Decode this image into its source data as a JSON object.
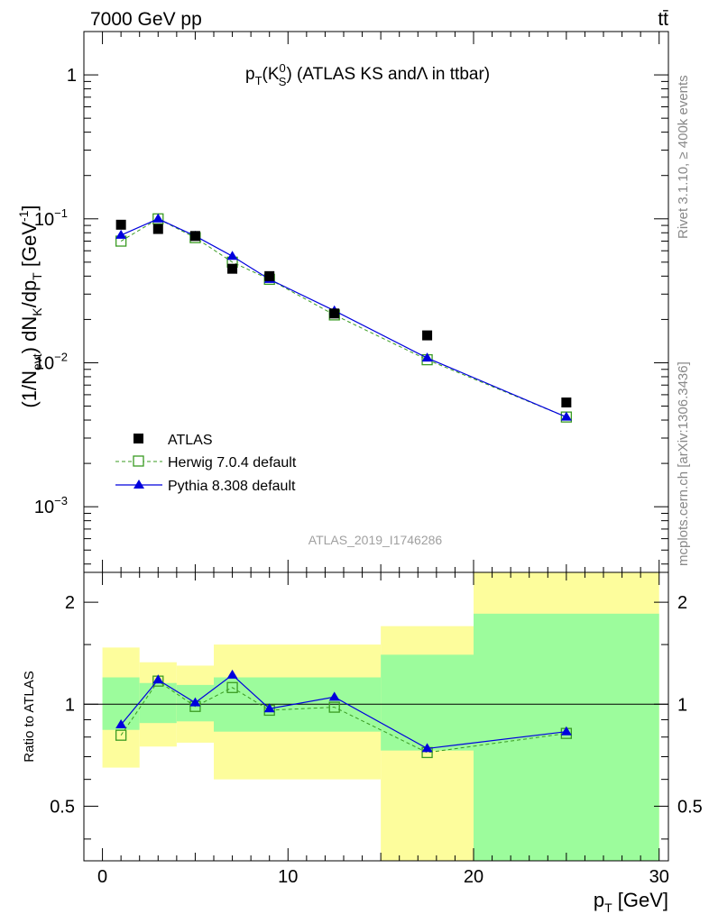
{
  "header": {
    "left": "7000 GeV pp",
    "right": "tt̄",
    "side_top": "Rivet 3.1.10, ≥ 400k events",
    "side_bottom": "mcplots.cern.ch [arXiv:1306.3436]"
  },
  "colors": {
    "atlas": "#000000",
    "herwig": "#3a9b22",
    "pythia": "#0000dd",
    "band_inner": "#9cfc9c",
    "band_outer": "#fdfd9c",
    "analysis_id": "#a0a0a0"
  },
  "chart_data": [
    {
      "type": "scatter",
      "panel": "main",
      "title_parts": {
        "p": "p",
        "T": "T",
        "lp": "(K",
        "sup": "0",
        "sub": "S",
        "rp": ")",
        "rest": " (ATLAS KS and",
        "lambda": "Λ",
        "tail": " in ttbar)"
      },
      "ylabel_parts": {
        "a": "(1/N",
        "b": "evt",
        "c": ") dN",
        "d": "K",
        "e": "/dp",
        "f": "T",
        "g": " [GeV",
        "h": "-1",
        "i": "]"
      },
      "analysis_id": "ATLAS_2019_I1746286",
      "y_scale": "log",
      "ylim": [
        0.00035,
        2
      ],
      "xlim": [
        -1,
        30.5
      ],
      "y_ticks": [
        {
          "base": "1",
          "exp": ""
        },
        {
          "base": "10",
          "exp": "−1"
        },
        {
          "base": "10",
          "exp": "−2"
        },
        {
          "base": "10",
          "exp": "−3"
        }
      ],
      "legend_position": "bottom-left",
      "series": [
        {
          "name": "ATLAS",
          "marker": "square-filled",
          "x": [
            1,
            3,
            5,
            7,
            9,
            12.5,
            17.5,
            25
          ],
          "y": [
            0.091,
            0.085,
            0.076,
            0.045,
            0.04,
            0.022,
            0.0155,
            0.0053
          ]
        },
        {
          "name": "Herwig 7.0.4 default",
          "marker": "square-open",
          "line": "dashed",
          "x": [
            1,
            3,
            5,
            7,
            9,
            12.5,
            17.5,
            25
          ],
          "y": [
            0.07,
            0.1,
            0.074,
            0.05,
            0.038,
            0.0215,
            0.0105,
            0.0042
          ]
        },
        {
          "name": "Pythia 8.308 default",
          "marker": "triangle-filled",
          "line": "solid",
          "x": [
            1,
            3,
            5,
            7,
            9,
            12.5,
            17.5,
            25
          ],
          "y": [
            0.077,
            0.1,
            0.076,
            0.055,
            0.038,
            0.023,
            0.0108,
            0.0042
          ]
        }
      ]
    },
    {
      "type": "line",
      "panel": "ratio",
      "ylabel": "Ratio to ATLAS",
      "xlabel_parts": {
        "p": "p",
        "sub": "T",
        "unit": " [GeV]"
      },
      "y_scale": "log",
      "ylim": [
        0.345,
        2.45
      ],
      "xlim": [
        -1,
        30.5
      ],
      "x_ticks": [
        0,
        10,
        20,
        30
      ],
      "y_ticks": [
        2,
        1,
        0.5
      ],
      "reference": 1,
      "bands": [
        {
          "x": [
            0,
            2
          ],
          "inner": [
            0.84,
            1.2
          ],
          "outer": [
            0.65,
            1.47
          ]
        },
        {
          "x": [
            2,
            4
          ],
          "inner": [
            0.88,
            1.155
          ],
          "outer": [
            0.75,
            1.33
          ]
        },
        {
          "x": [
            4,
            6
          ],
          "inner": [
            0.89,
            1.14
          ],
          "outer": [
            0.77,
            1.3
          ]
        },
        {
          "x": [
            6,
            15
          ],
          "inner": [
            0.83,
            1.2
          ],
          "outer": [
            0.6,
            1.5
          ]
        },
        {
          "x": [
            15,
            20
          ],
          "inner": [
            0.73,
            1.4
          ],
          "outer": [
            0.345,
            1.7
          ]
        },
        {
          "x": [
            20,
            30
          ],
          "inner": [
            0.345,
            1.85
          ],
          "outer": [
            0.345,
            2.45
          ]
        }
      ],
      "series": [
        {
          "name": "Herwig 7.0.4 default",
          "marker": "square-open",
          "line": "dashed",
          "x": [
            1,
            3,
            5,
            7,
            9,
            12.5,
            17.5,
            25
          ],
          "y": [
            0.81,
            1.17,
            0.985,
            1.12,
            0.96,
            0.98,
            0.72,
            0.82
          ]
        },
        {
          "name": "Pythia 8.308 default",
          "marker": "triangle-filled",
          "line": "solid",
          "x": [
            1,
            3,
            5,
            7,
            9,
            12.5,
            17.5,
            25
          ],
          "y": [
            0.87,
            1.18,
            1.01,
            1.22,
            0.97,
            1.05,
            0.74,
            0.83
          ]
        }
      ]
    }
  ]
}
